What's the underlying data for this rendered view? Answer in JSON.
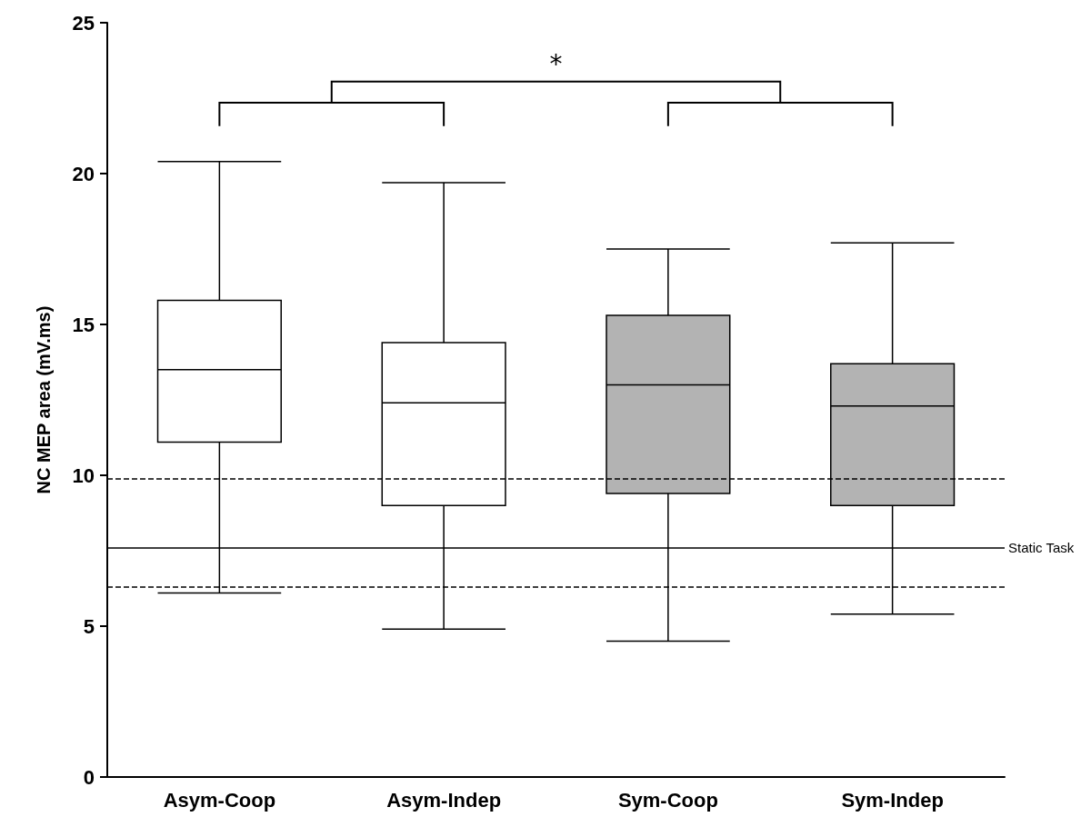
{
  "chart_data": {
    "type": "box",
    "ylabel": "NC MEP area (mV.ms)",
    "categories": [
      "Asym-Coop",
      "Asym-Indep",
      "Sym-Coop",
      "Sym-Indep"
    ],
    "boxes": [
      {
        "low": 6.1,
        "q1": 11.1,
        "median": 13.5,
        "q3": 15.8,
        "high": 20.4
      },
      {
        "low": 4.9,
        "q1": 9.0,
        "median": 12.4,
        "q3": 14.4,
        "high": 19.7
      },
      {
        "low": 4.5,
        "q1": 9.4,
        "median": 13.0,
        "q3": 15.3,
        "high": 17.5
      },
      {
        "low": 5.4,
        "q1": 9.0,
        "median": 12.3,
        "q3": 13.7,
        "high": 17.7
      }
    ],
    "colors": [
      "#ffffff",
      "#ffffff",
      "#b3b3b3",
      "#b3b3b3"
    ],
    "ylim": [
      0,
      25
    ],
    "yticks": [
      0,
      5,
      10,
      15,
      20,
      25
    ],
    "ref_lines": [
      {
        "axis": "y",
        "value": 9.9,
        "label": null,
        "color": "#000000",
        "line_style": "dashed"
      },
      {
        "axis": "y",
        "value": 7.6,
        "label": "Static Task",
        "color": "#000000",
        "line_style": "solid"
      },
      {
        "axis": "y",
        "value": 6.3,
        "label": null,
        "color": "#000000",
        "line_style": "dashed"
      }
    ],
    "annotations": [
      "*"
    ]
  }
}
